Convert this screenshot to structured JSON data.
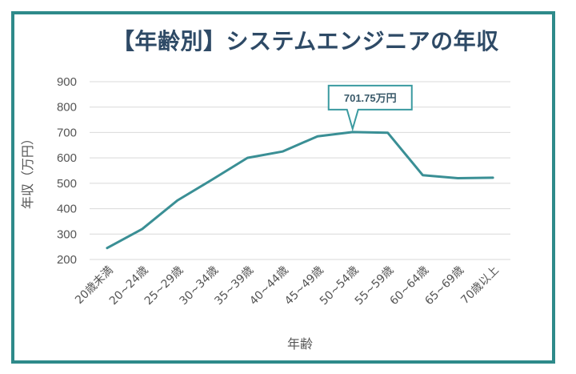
{
  "chart_data": {
    "type": "line",
    "title": "【年齢別】システムエンジニアの年収",
    "xlabel": "年齢",
    "ylabel": "年収（万円）",
    "categories": [
      "20歳未満",
      "20~24歳",
      "25~29歳",
      "30~34歳",
      "35~39歳",
      "40~44歳",
      "45~49歳",
      "50~54歳",
      "55~59歳",
      "60~64歳",
      "65~69歳",
      "70歳以上"
    ],
    "series": [
      {
        "values": [
          245,
          320,
          432,
          515,
          600,
          625,
          685,
          701.75,
          699,
          532,
          520,
          522
        ]
      }
    ],
    "ylim": [
      200,
      900
    ],
    "yticks": [
      "900",
      "800",
      "700",
      "600",
      "500",
      "400",
      "300",
      "200"
    ],
    "grid": true,
    "annotation": {
      "text": "701.75万円",
      "category_index": 7
    },
    "colors": {
      "line": "#3a8f95",
      "frame": "#2e8a8a",
      "callout_border": "#3a9aa0"
    }
  }
}
